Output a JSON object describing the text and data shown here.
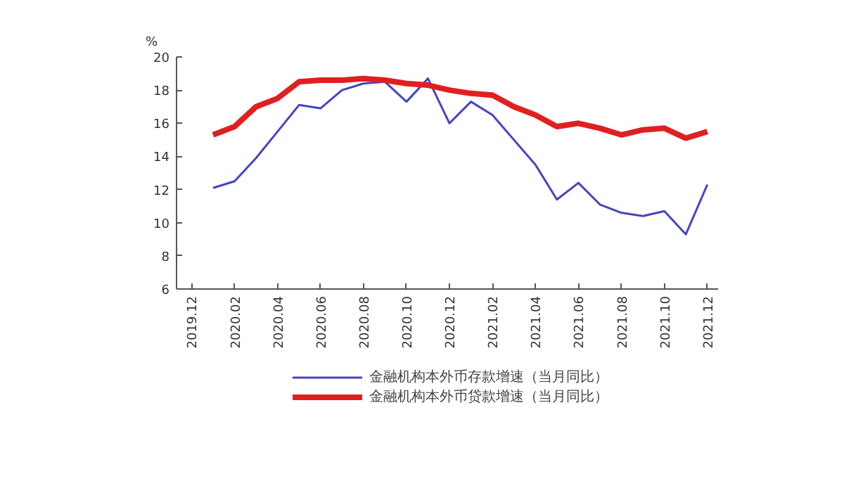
{
  "chart_data": {
    "type": "line",
    "ylabel": "%",
    "legend": "bottom",
    "grid": false,
    "marker": "none",
    "line_style": "solid",
    "categories": [
      "2019.12",
      null,
      "2020.02",
      null,
      "2020.04",
      null,
      "2020.06",
      null,
      "2020.08",
      null,
      "2020.10",
      null,
      "2020.12",
      null,
      "2021.02",
      null,
      "2021.04",
      null,
      "2021.06",
      null,
      "2021.08",
      null,
      "2021.10",
      null,
      "2021.12"
    ],
    "ylim": [
      6,
      20
    ],
    "yticks": [
      6,
      8,
      10,
      12,
      14,
      16,
      18,
      20
    ],
    "series": [
      {
        "name": "金融机构本外币存款增速（当月同比）",
        "color": "#4444c4",
        "values": [
          null,
          12.1,
          12.5,
          13.9,
          15.5,
          17.1,
          16.9,
          18.0,
          18.4,
          18.5,
          17.3,
          18.7,
          16.0,
          17.3,
          16.5,
          15.0,
          13.5,
          11.4,
          12.4,
          11.1,
          10.6,
          10.4,
          10.7,
          9.3,
          12.3
        ]
      },
      {
        "name": "金融机构本外币贷款增速（当月同比）",
        "color": "#e02020",
        "values": [
          null,
          15.3,
          15.8,
          17.0,
          17.5,
          18.5,
          18.6,
          18.6,
          18.7,
          18.6,
          18.4,
          18.3,
          18.0,
          17.8,
          17.7,
          17.0,
          16.5,
          15.8,
          16.0,
          15.7,
          15.3,
          15.6,
          15.7,
          15.1,
          15.5
        ]
      }
    ]
  }
}
